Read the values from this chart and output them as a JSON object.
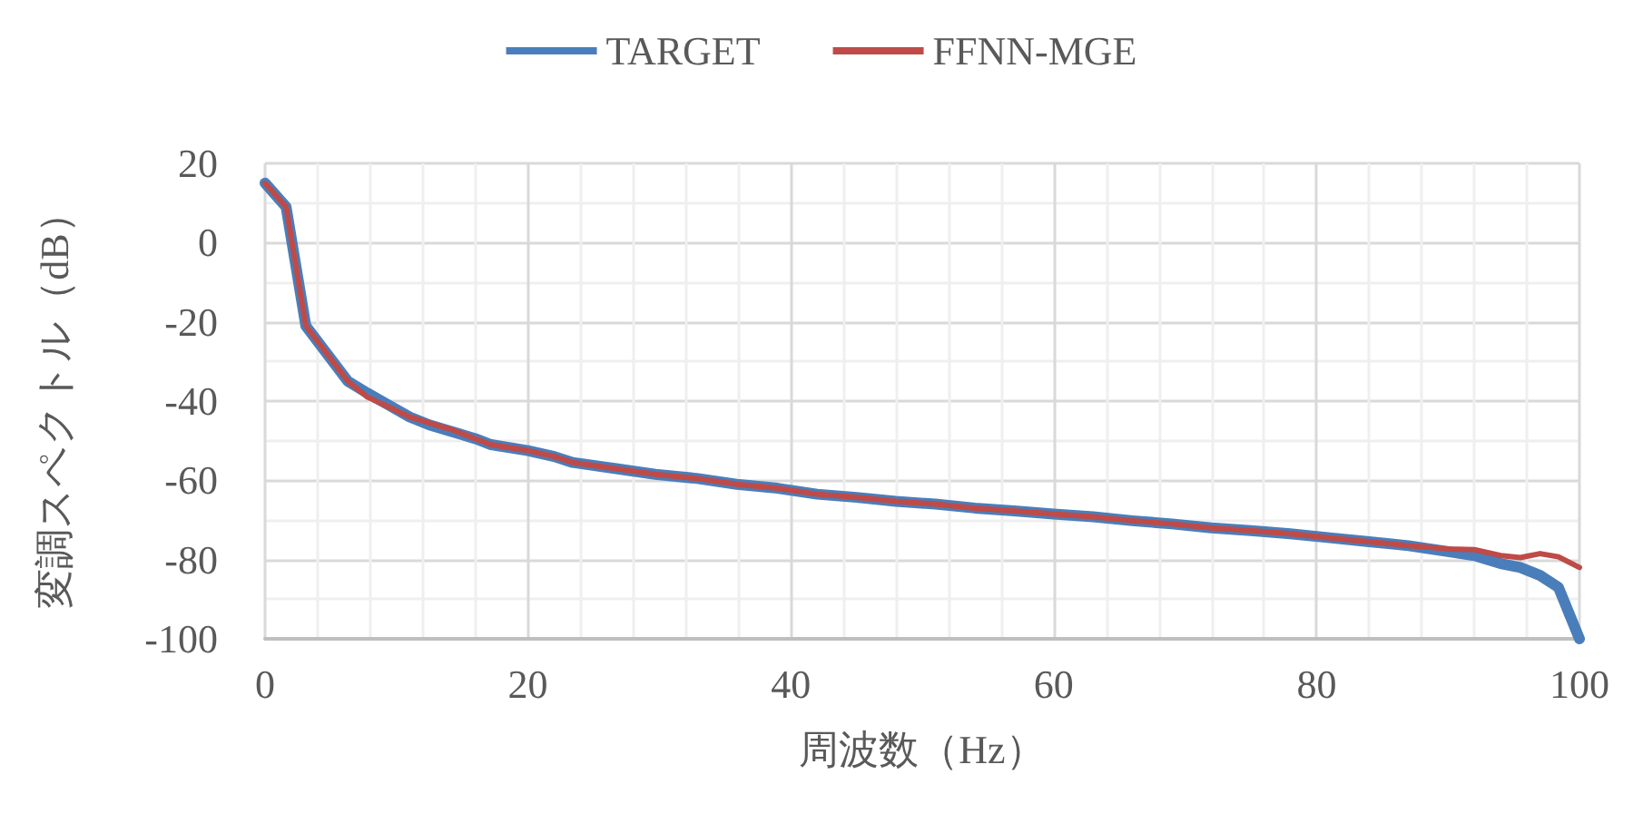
{
  "chart_data": {
    "type": "line",
    "xlabel": "周波数（Hz）",
    "ylabel": "変調スペクトル（dB）",
    "xlim": [
      0,
      100
    ],
    "xticks": [
      0,
      20,
      40,
      60,
      80,
      100
    ],
    "ylim": [
      -100,
      20
    ],
    "yticks": [
      -100,
      -80,
      -60,
      -40,
      -20,
      0,
      20
    ],
    "grid": true,
    "legend": "top",
    "marker": "none",
    "line_style": "solid",
    "series": [
      {
        "name": "TARGET",
        "color": "#4a7ebb",
        "x": [
          0,
          1.6,
          3.1,
          4.7,
          6.3,
          7.8,
          9.4,
          11,
          12.5,
          14,
          16,
          17.2,
          20,
          22,
          23.4,
          26.6,
          29.7,
          32.8,
          35.9,
          39,
          42,
          45,
          48,
          51,
          54,
          57,
          60,
          63,
          66,
          69,
          72,
          75,
          78,
          81,
          84,
          87,
          90,
          92,
          94,
          95.5,
          97,
          98.4,
          100
        ],
        "values": [
          15,
          9,
          -21,
          -28,
          -35,
          -38,
          -41,
          -44,
          -46,
          -47.5,
          -49.5,
          -51,
          -52.5,
          -54,
          -55.5,
          -57,
          -58.5,
          -59.5,
          -61,
          -62,
          -63.5,
          -64.3,
          -65.3,
          -66,
          -67,
          -67.7,
          -68.5,
          -69.2,
          -70.2,
          -71,
          -72,
          -72.7,
          -73.5,
          -74.5,
          -75.5,
          -76.5,
          -78,
          -79,
          -81,
          -82,
          -84,
          -87,
          -100
        ]
      },
      {
        "name": "FFNN-MGE",
        "color": "#be4b48",
        "x": [
          0,
          1.6,
          3.1,
          4.7,
          6.3,
          7.8,
          9.4,
          11,
          12.5,
          14,
          16,
          17.2,
          20,
          22,
          23.4,
          26.6,
          29.7,
          32.8,
          35.9,
          39,
          42,
          45,
          48,
          51,
          54,
          57,
          60,
          63,
          66,
          69,
          72,
          75,
          78,
          81,
          84,
          87,
          90,
          92,
          94,
          95.5,
          97,
          98.4,
          100
        ],
        "values": [
          15,
          9,
          -21,
          -28,
          -35,
          -39,
          -41.5,
          -44,
          -45.5,
          -47,
          -49.5,
          -51,
          -52.5,
          -54,
          -55.5,
          -57,
          -58.5,
          -59.5,
          -61,
          -62,
          -63.5,
          -64.3,
          -65.3,
          -66,
          -67,
          -67.7,
          -68.5,
          -69.2,
          -70.2,
          -71,
          -72,
          -72.7,
          -73.5,
          -74.5,
          -75.5,
          -76.5,
          -77.3,
          -77.5,
          -79,
          -79.5,
          -78.5,
          -79.3,
          -82
        ]
      }
    ]
  }
}
